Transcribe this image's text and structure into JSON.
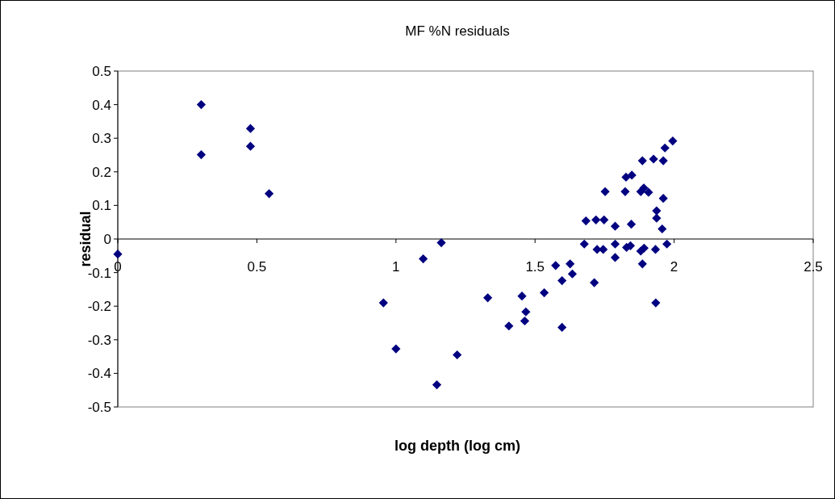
{
  "chart_data": {
    "type": "scatter",
    "title": "MF %N residuals",
    "xlabel": "log depth (log cm)",
    "ylabel": "residual",
    "xlim": [
      0,
      2.5
    ],
    "xticks": [
      0,
      0.5,
      1,
      1.5,
      2,
      2.5
    ],
    "ylim": [
      -0.5,
      0.5
    ],
    "yticks": [
      -0.5,
      -0.4,
      -0.3,
      -0.2,
      -0.1,
      0,
      0.1,
      0.2,
      0.3,
      0.4,
      0.5
    ],
    "grid": false,
    "marker": "diamond",
    "series": [
      {
        "color": "#000080",
        "x": [
          0,
          0.3,
          0.3,
          0.477,
          0.477,
          0.544,
          0.955,
          1.0,
          1.098,
          1.163,
          1.147,
          1.22,
          1.995,
          1.967,
          1.886,
          1.926,
          1.961,
          1.827,
          1.848,
          1.752,
          1.824,
          1.88,
          1.891,
          1.908,
          1.961,
          1.937,
          1.937,
          1.957,
          1.683,
          1.719,
          1.748,
          1.788,
          1.846,
          1.677,
          1.723,
          1.745,
          1.788,
          1.829,
          1.843,
          1.88,
          1.892,
          1.933,
          1.974,
          1.788,
          1.886,
          1.713,
          1.934,
          1.574,
          1.626,
          1.634,
          1.597,
          1.533,
          1.453,
          1.33,
          1.467,
          1.463,
          1.406,
          1.597
        ],
        "values": [
          -0.045,
          0.4,
          0.251,
          0.329,
          0.276,
          0.135,
          -0.19,
          -0.327,
          -0.059,
          -0.011,
          -0.434,
          -0.345,
          0.292,
          0.271,
          0.233,
          0.238,
          0.233,
          0.184,
          0.19,
          0.141,
          0.141,
          0.141,
          0.152,
          0.139,
          0.121,
          0.084,
          0.062,
          0.03,
          0.054,
          0.057,
          0.057,
          0.038,
          0.044,
          -0.015,
          -0.031,
          -0.031,
          -0.015,
          -0.025,
          -0.02,
          -0.036,
          -0.027,
          -0.031,
          -0.015,
          -0.055,
          -0.074,
          -0.13,
          -0.19,
          -0.079,
          -0.074,
          -0.104,
          -0.124,
          -0.16,
          -0.17,
          -0.175,
          -0.217,
          -0.244,
          -0.259,
          -0.263
        ]
      }
    ]
  }
}
